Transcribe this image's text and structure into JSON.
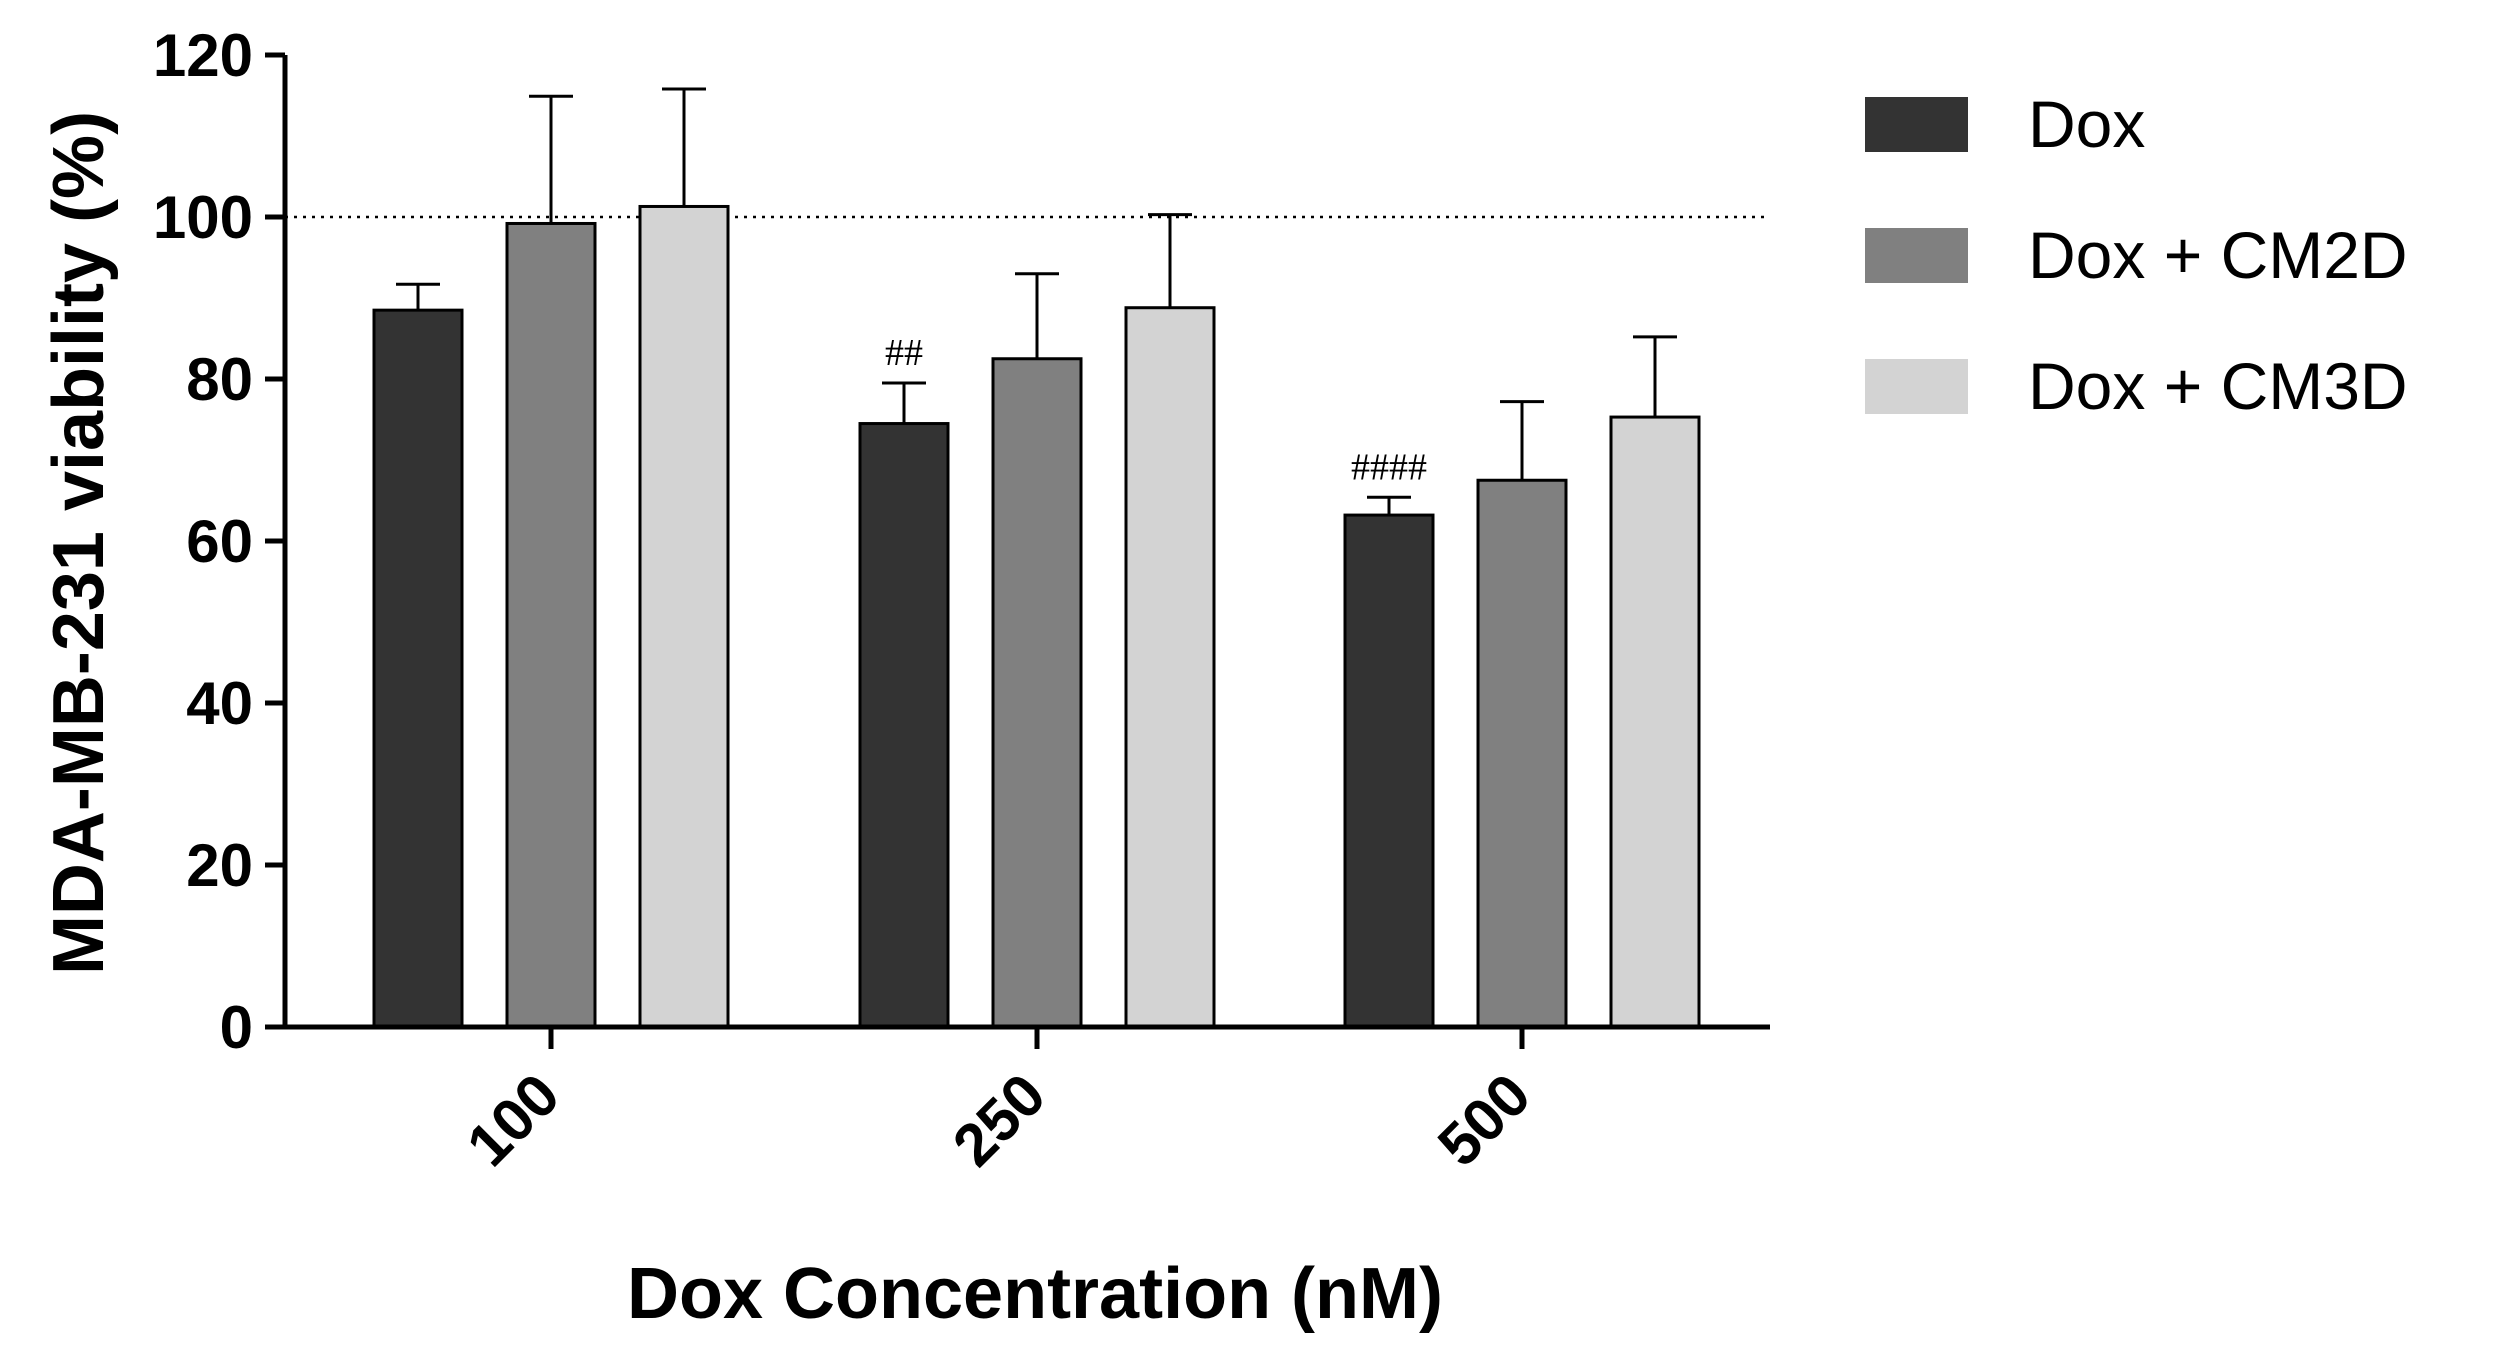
{
  "chart_data": {
    "type": "bar",
    "title": "",
    "xlabel": "Dox Concentration (nM)",
    "ylabel": "MDA-MB-231 viability (%)",
    "ylim": [
      0,
      120
    ],
    "yticks": [
      0,
      20,
      40,
      60,
      80,
      100,
      120
    ],
    "categories": [
      "100",
      "250",
      "500"
    ],
    "series": [
      {
        "name": "Dox",
        "color": "#333333",
        "values": [
          88.5,
          74.5,
          63.2
        ],
        "errors": [
          3.2,
          5.0,
          2.2
        ]
      },
      {
        "name": "Dox + CM2D",
        "color": "#808080",
        "values": [
          99.2,
          82.5,
          67.5
        ],
        "errors": [
          15.7,
          10.5,
          9.7
        ]
      },
      {
        "name": "Dox + CM3D",
        "color": "#d3d3d3",
        "values": [
          101.3,
          88.8,
          75.3
        ],
        "errors": [
          14.5,
          11.5,
          9.9
        ]
      }
    ],
    "reference_line": 100,
    "annotations": [
      {
        "category": "250",
        "series": "Dox",
        "text": "##"
      },
      {
        "category": "500",
        "series": "Dox",
        "text": "####"
      }
    ],
    "legend_position": "right",
    "grid": false
  }
}
